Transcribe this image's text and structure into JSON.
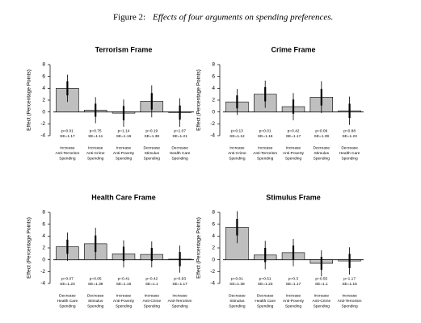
{
  "caption": {
    "label": "Figure 2:",
    "text": "Effects of four arguments on spending preferences."
  },
  "chart_data": [
    {
      "type": "bar",
      "title": "Terrorism Frame",
      "ylabel": "Effect (Percentage Points)",
      "color": "#bfbfbf",
      "categories": [
        [
          "Increase",
          "Anti-Terrorism",
          "Spending"
        ],
        [
          "Increase",
          "Anti-Crime",
          "Spending"
        ],
        [
          "Increase",
          "Anti-Poverty",
          "Spending"
        ],
        [
          "Decrease",
          "Stimulus",
          "Spending"
        ],
        [
          "Decrease",
          "Health Care",
          "Spending"
        ]
      ],
      "values": [
        4.0,
        0.3,
        -0.2,
        1.8,
        -0.1
      ],
      "error_inner": [
        1.2,
        1.1,
        1.2,
        1.4,
        1.2
      ],
      "error_outer": [
        2.3,
        2.2,
        2.3,
        2.7,
        2.4
      ],
      "annotations": [
        [
          "p=0.01",
          "SE=1.17"
        ],
        [
          "p=0.75",
          "SE=1.11"
        ],
        [
          "p=1.14",
          "SE=1.16"
        ],
        [
          "p=0.19",
          "SE=1.38"
        ],
        [
          "p=1.07",
          "SE=1.21"
        ]
      ],
      "ylim": [
        -4,
        8
      ],
      "yticks": [
        -4,
        -2,
        0,
        2,
        4,
        6,
        8
      ]
    },
    {
      "type": "bar",
      "title": "Crime Frame",
      "ylabel": "Effect (Percentage Points)",
      "color": "#bfbfbf",
      "categories": [
        [
          "Increase",
          "Anti-Crime",
          "Spending"
        ],
        [
          "Increase",
          "Anti-Terrorism",
          "Spending"
        ],
        [
          "Increase",
          "Anti-Poverty",
          "Spending"
        ],
        [
          "Decrease",
          "Stimulus",
          "Spending"
        ],
        [
          "Decrease",
          "Health Care",
          "Spending"
        ]
      ],
      "values": [
        1.7,
        3.0,
        0.9,
        2.5,
        0.2
      ],
      "error_inner": [
        1.1,
        1.2,
        1.2,
        1.4,
        1.2
      ],
      "error_outer": [
        2.2,
        2.3,
        2.3,
        2.7,
        2.4
      ],
      "annotations": [
        [
          "p=0.13",
          "SE=1.12"
        ],
        [
          "p=0.01",
          "SE=1.16"
        ],
        [
          "p=0.42",
          "SE=1.17"
        ],
        [
          "p=0.09",
          "SE=1.39"
        ],
        [
          "p=0.88",
          "SE=1.23"
        ]
      ],
      "ylim": [
        -4,
        8
      ],
      "yticks": [
        -4,
        -2,
        0,
        2,
        4,
        6,
        8
      ]
    },
    {
      "type": "bar",
      "title": "Health Care Frame",
      "ylabel": "Effect (Percentage Points)",
      "color": "#bfbfbf",
      "categories": [
        [
          "Decrease",
          "Health Care",
          "Spending"
        ],
        [
          "Decrease",
          "Stimulus",
          "Spending"
        ],
        [
          "Increase",
          "Anti-Poverty",
          "Spending"
        ],
        [
          "Increase",
          "Anti-Crime",
          "Spending"
        ],
        [
          "Increase",
          "Anti-Terrorism",
          "Spending"
        ]
      ],
      "values": [
        2.2,
        2.7,
        1.0,
        0.9,
        0.1
      ],
      "error_inner": [
        1.2,
        1.4,
        1.2,
        1.1,
        1.2
      ],
      "error_outer": [
        2.4,
        2.7,
        2.3,
        2.2,
        2.3
      ],
      "annotations": [
        [
          "p=0.07",
          "SE=1.23"
        ],
        [
          "p=0.05",
          "SE=1.38"
        ],
        [
          "p=0.41",
          "SE=1.16"
        ],
        [
          "p=0.42",
          "SE=1.1"
        ],
        [
          "p=0.93",
          "SE=1.17"
        ]
      ],
      "ylim": [
        -4,
        8
      ],
      "yticks": [
        -4,
        -2,
        0,
        2,
        4,
        6,
        8
      ]
    },
    {
      "type": "bar",
      "title": "Stimulus Frame",
      "ylabel": "Effect (Percentage Points)",
      "color": "#bfbfbf",
      "categories": [
        [
          "Decrease",
          "Stimulus",
          "Spending"
        ],
        [
          "Decrease",
          "Health Care",
          "Spending"
        ],
        [
          "Increase",
          "Anti-Poverty",
          "Spending"
        ],
        [
          "Increase",
          "Anti-Crime",
          "Spending"
        ],
        [
          "Increase",
          "Anti-Terrorism",
          "Spending"
        ]
      ],
      "values": [
        5.5,
        0.8,
        1.2,
        -0.6,
        -0.2
      ],
      "error_inner": [
        1.4,
        1.2,
        1.2,
        1.1,
        1.2
      ],
      "error_outer": [
        2.7,
        2.4,
        2.3,
        2.2,
        2.3
      ],
      "annotations": [
        [
          "p=0.01",
          "SE=1.38"
        ],
        [
          "p=0.51",
          "SE=1.23"
        ],
        [
          "p=0.3",
          "SE=1.17"
        ],
        [
          "p=0.55",
          "SE=1.1"
        ],
        [
          "p=1.17",
          "SE=1.15"
        ]
      ],
      "ylim": [
        -4,
        8
      ],
      "yticks": [
        -4,
        -2,
        0,
        2,
        4,
        6,
        8
      ]
    }
  ]
}
